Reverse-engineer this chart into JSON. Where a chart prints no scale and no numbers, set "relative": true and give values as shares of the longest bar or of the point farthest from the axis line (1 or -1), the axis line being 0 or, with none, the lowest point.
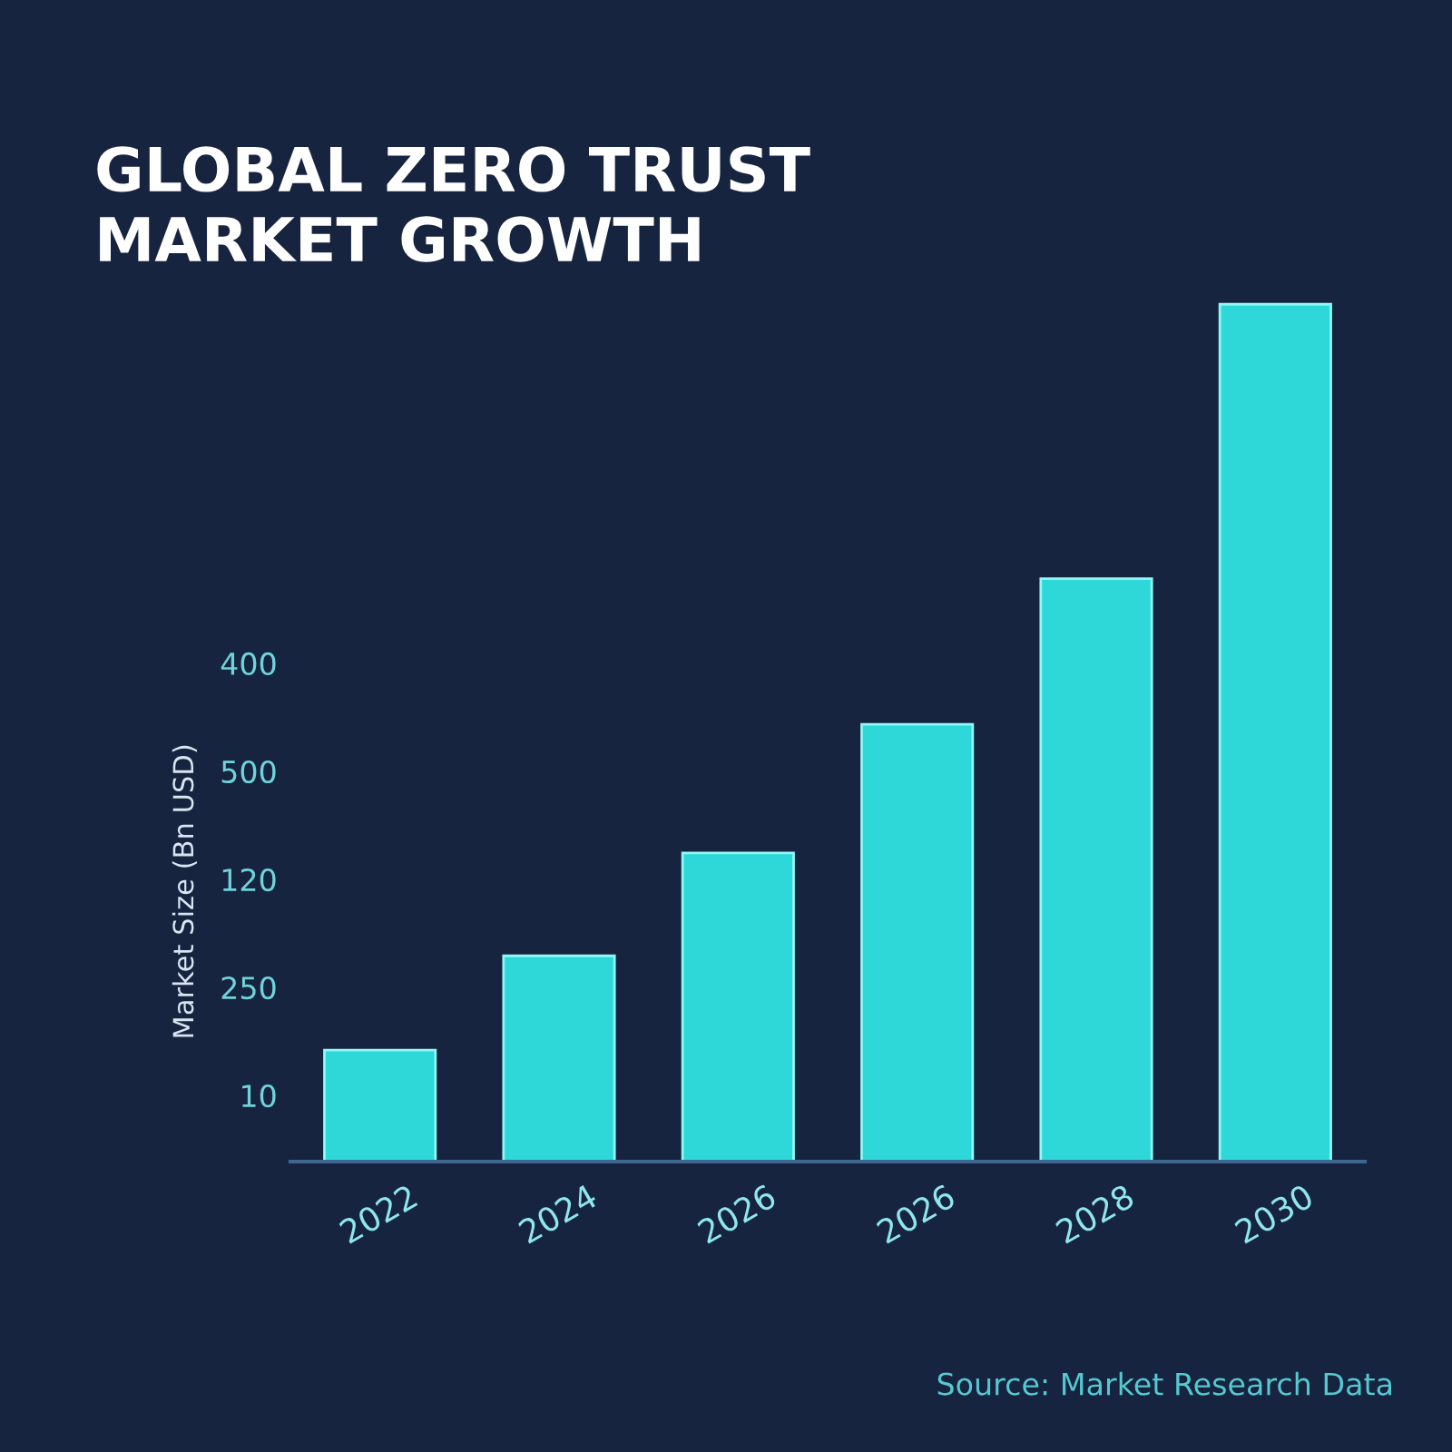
{
  "chart_data": {
    "type": "bar",
    "title": "GLOBAL ZERO TRUST\nMARKET GROWTH",
    "ylabel": "Market Size (Bn USD)",
    "categories": [
      "2022",
      "2024",
      "2026",
      "2026",
      "2028",
      "2030"
    ],
    "values": [
      0.13,
      0.24,
      0.36,
      0.51,
      0.68,
      1
    ],
    "color": "#2ed8d8",
    "relative": true,
    "annotations": [
      "400",
      "500",
      "120",
      "250",
      "10",
      "Source: Market Research Data"
    ]
  }
}
